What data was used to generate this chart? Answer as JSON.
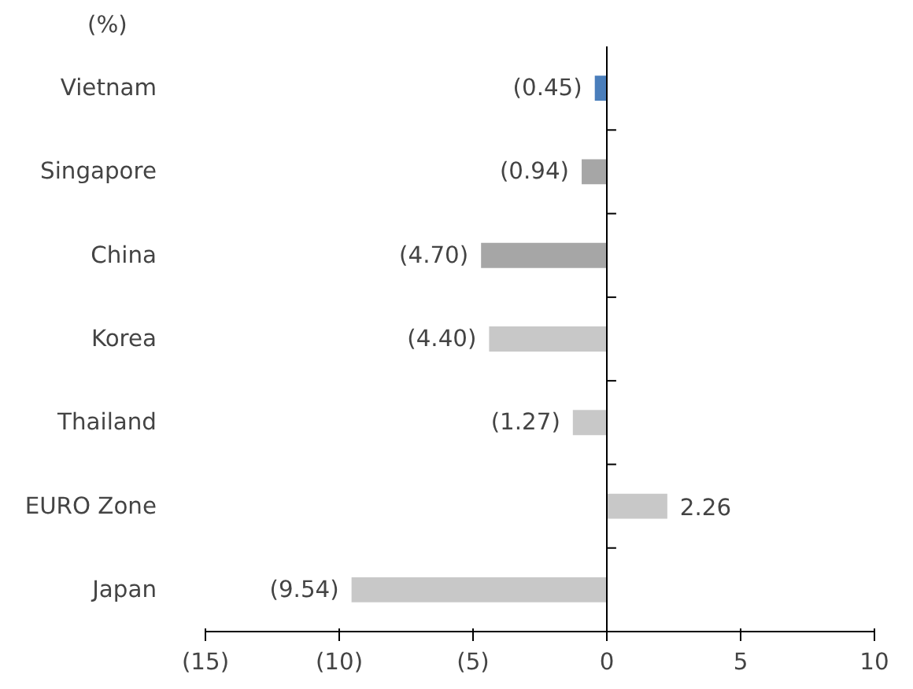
{
  "chart_data": {
    "type": "bar",
    "orientation": "horizontal",
    "categories": [
      "Vietnam",
      "Singapore",
      "China",
      "Korea",
      "Thailand",
      "EURO Zone",
      "Japan"
    ],
    "values": [
      -0.45,
      -0.94,
      -4.7,
      -4.4,
      -1.27,
      2.26,
      -9.54
    ],
    "colors": [
      "#4a7ebb",
      "#a6a6a6",
      "#a6a6a6",
      "#c8c8c8",
      "#c8c8c8",
      "#c8c8c8",
      "#c8c8c8"
    ],
    "value_labels": [
      "(0.45)",
      "(0.94)",
      "(4.70)",
      "(4.40)",
      "(1.27)",
      "2.26",
      "(9.54)"
    ],
    "xlim": [
      -15,
      10
    ],
    "xticks": [
      {
        "value": -15,
        "label": "(15)"
      },
      {
        "value": -10,
        "label": "(10)"
      },
      {
        "value": -5,
        "label": "(5)"
      },
      0,
      5,
      10
    ],
    "annotations": [
      "(%)"
    ]
  }
}
